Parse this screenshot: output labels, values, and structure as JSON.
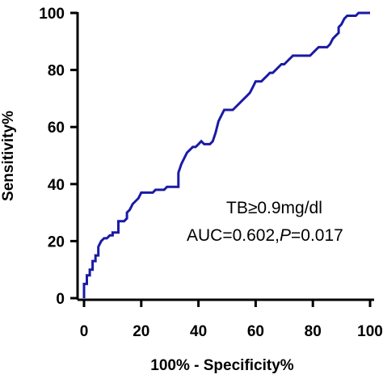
{
  "chart_data": {
    "type": "line",
    "xlabel": "100% - Specificity%",
    "ylabel": "Sensitivity%",
    "xlim": [
      0,
      100
    ],
    "ylim": [
      0,
      100
    ],
    "x_ticks": [
      "0",
      "20",
      "40",
      "60",
      "80",
      "100"
    ],
    "y_ticks": [
      "0",
      "20",
      "40",
      "60",
      "80",
      "100"
    ],
    "line_color": "#1a1aa6",
    "annotations": {
      "line1": "TB≥0.9mg/dl",
      "line2_prefix": "AUC=0.602,",
      "line2_p_label": "P",
      "line2_suffix": "=0.017"
    },
    "series": [
      {
        "x": [
          0,
          0,
          1,
          1,
          2,
          2,
          3,
          3,
          4,
          4,
          5,
          5,
          6,
          7,
          8,
          9,
          10,
          10,
          12,
          12,
          14,
          15,
          15,
          16,
          17,
          18,
          19,
          20,
          21,
          22,
          23,
          24,
          25,
          26,
          27,
          28,
          29,
          30,
          31,
          32,
          33,
          33,
          34,
          35,
          36,
          37,
          38,
          39,
          40,
          41,
          42,
          43,
          44,
          45,
          46,
          47,
          48,
          49,
          50,
          51,
          52,
          53,
          54,
          55,
          56,
          57,
          58,
          59,
          60,
          61,
          62,
          63,
          64,
          65,
          66,
          67,
          68,
          69,
          70,
          71,
          72,
          73,
          74,
          75,
          76,
          77,
          78,
          79,
          80,
          81,
          82,
          83,
          84,
          85,
          86,
          87,
          88,
          89,
          89,
          90,
          91,
          92,
          93,
          94,
          95,
          96,
          97,
          98,
          99,
          100
        ],
        "y": [
          0,
          5,
          5,
          8,
          8,
          10,
          10,
          13,
          13,
          15,
          15,
          18,
          20,
          21,
          21,
          22,
          22,
          23,
          23,
          27,
          27,
          28,
          30,
          31,
          33,
          34,
          35,
          37,
          37,
          37,
          37,
          37,
          38,
          38,
          38,
          38,
          39,
          39,
          39,
          39,
          39,
          44,
          47,
          49,
          51,
          52,
          53,
          53,
          54,
          55,
          54,
          54,
          54,
          55,
          58,
          62,
          64,
          66,
          66,
          66,
          66,
          67,
          68,
          69,
          70,
          71,
          72,
          74,
          76,
          76,
          76,
          77,
          78,
          79,
          79,
          80,
          81,
          82,
          82,
          83,
          84,
          85,
          85,
          85,
          85,
          85,
          85,
          85,
          86,
          87,
          88,
          88,
          88,
          88,
          89,
          91,
          92,
          93,
          95,
          96,
          98,
          99,
          99,
          99,
          99,
          100,
          100,
          100,
          100,
          100
        ]
      }
    ]
  }
}
